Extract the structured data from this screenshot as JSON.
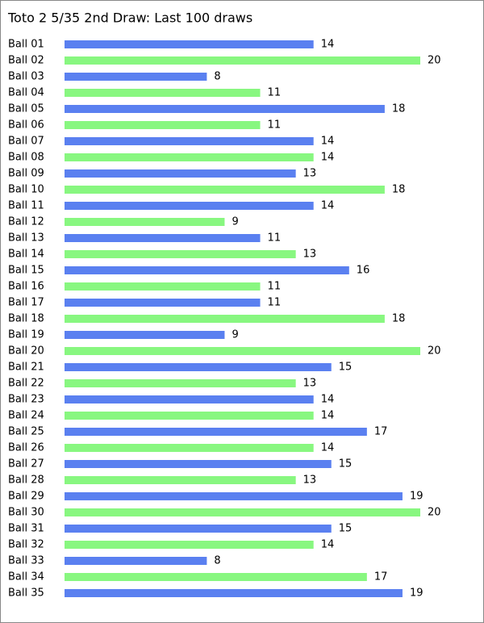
{
  "chart_data": {
    "type": "bar",
    "orientation": "horizontal",
    "title": "Toto 2 5/35 2nd Draw: Last 100 draws",
    "categories": [
      "Ball 01",
      "Ball 02",
      "Ball 03",
      "Ball 04",
      "Ball 05",
      "Ball 06",
      "Ball 07",
      "Ball 08",
      "Ball 09",
      "Ball 10",
      "Ball 11",
      "Ball 12",
      "Ball 13",
      "Ball 14",
      "Ball 15",
      "Ball 16",
      "Ball 17",
      "Ball 18",
      "Ball 19",
      "Ball 20",
      "Ball 21",
      "Ball 22",
      "Ball 23",
      "Ball 24",
      "Ball 25",
      "Ball 26",
      "Ball 27",
      "Ball 28",
      "Ball 29",
      "Ball 30",
      "Ball 31",
      "Ball 32",
      "Ball 33",
      "Ball 34",
      "Ball 35"
    ],
    "values": [
      14,
      20,
      8,
      11,
      18,
      11,
      14,
      14,
      13,
      18,
      14,
      9,
      11,
      13,
      16,
      11,
      11,
      18,
      9,
      20,
      15,
      13,
      14,
      14,
      17,
      14,
      15,
      13,
      19,
      20,
      15,
      14,
      8,
      17,
      19
    ],
    "colors": [
      "#5a80f0",
      "#88f780"
    ]
  }
}
